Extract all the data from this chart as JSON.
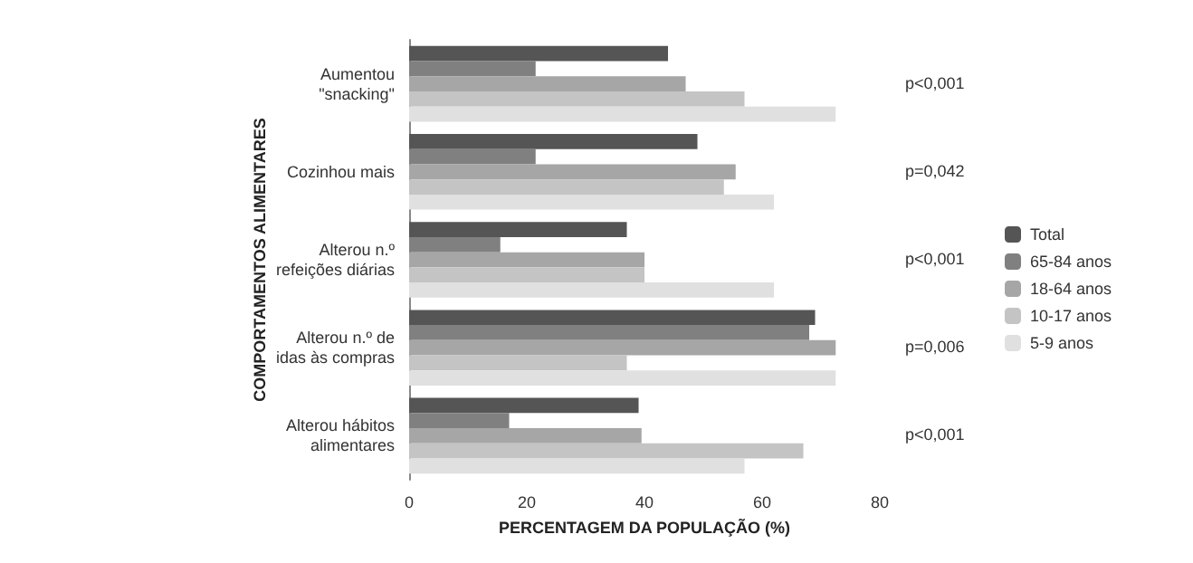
{
  "chart_data": {
    "type": "bar",
    "orientation": "horizontal",
    "xlabel": "PERCENTAGEM DA POPULAÇÃO (%)",
    "ylabel": "COMPORTAMENTOS ALIMENTARES",
    "categories": [
      "Aumentou\n\"snacking\"",
      "Cozinhou mais",
      "Alterou n.º\nrefeições diárias",
      "Alterou n.º de\nidas às compras",
      "Alterou hábitos\nalimentares"
    ],
    "series": [
      {
        "name": "Total",
        "color": "#555555",
        "values": [
          44,
          49,
          37,
          69,
          39
        ]
      },
      {
        "name": "65-84 anos",
        "color": "#808080",
        "values": [
          21.5,
          21.5,
          15.5,
          68,
          17
        ]
      },
      {
        "name": "18-64 anos",
        "color": "#a6a6a6",
        "values": [
          47,
          55.5,
          40,
          72.5,
          39.5
        ]
      },
      {
        "name": "10-17 anos",
        "color": "#c4c4c4",
        "values": [
          57,
          53.5,
          40,
          37,
          67
        ]
      },
      {
        "name": "5-9 anos",
        "color": "#e0e0e0",
        "values": [
          72.5,
          62,
          62,
          72.5,
          57
        ]
      }
    ],
    "xlim": [
      0,
      80
    ],
    "xticks": [
      0,
      20,
      40,
      60,
      80
    ],
    "grid": false,
    "legend": "right",
    "annotations": [
      "p<0,001",
      "p=0,042",
      "p<0,001",
      "p=0,006",
      "p<0,001"
    ]
  }
}
